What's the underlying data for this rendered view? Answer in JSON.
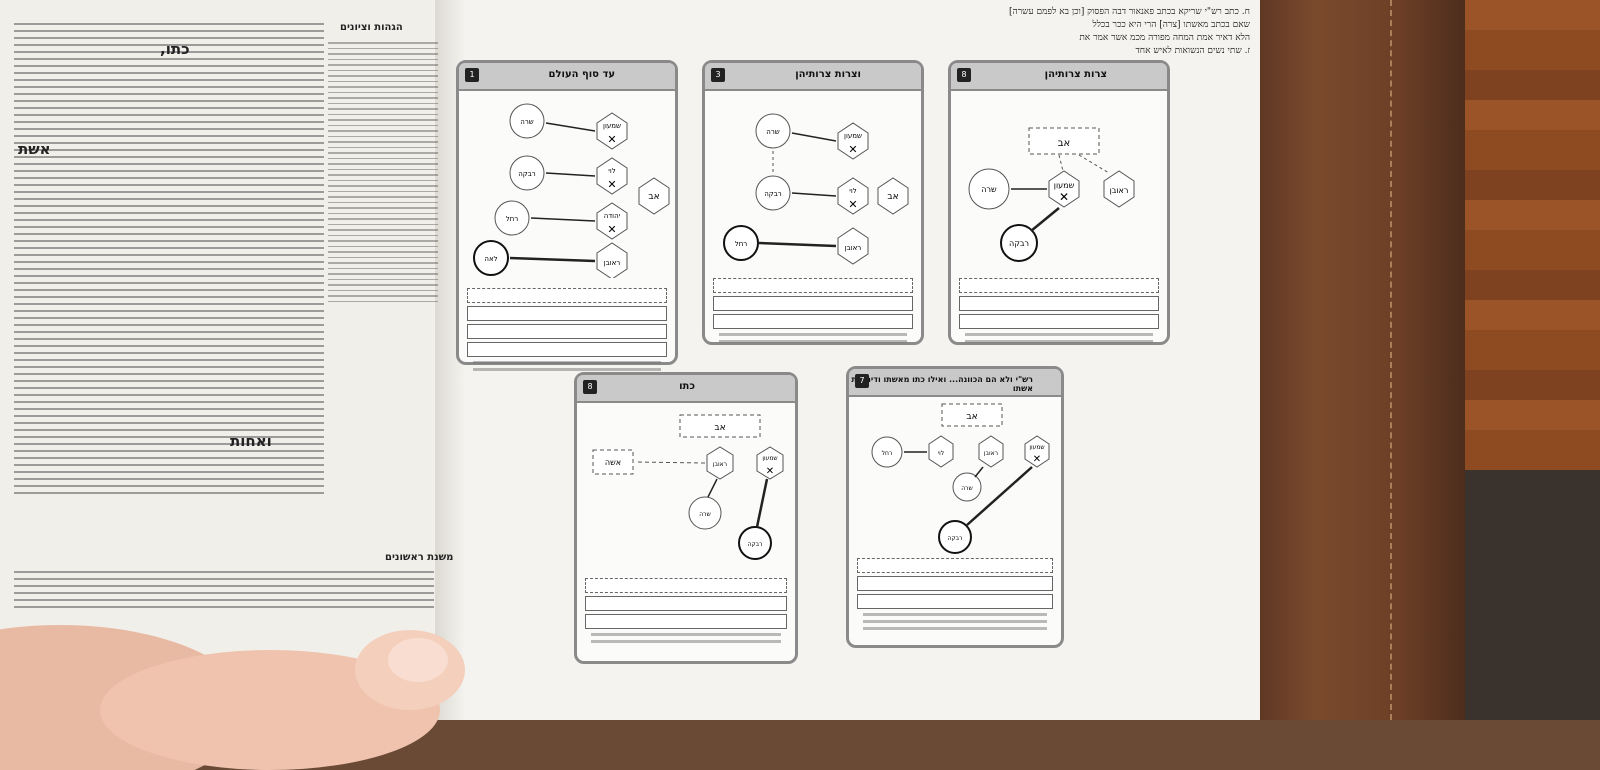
{
  "page": {
    "right_top_text": [
      "ח. כתב רש\"י שריקא בכתב פאנאור דבה הפסוק [וכן בא לפמם עשרה]",
      "שאם בכתב מאשתו [צרה] הרי היא ככר בכלל",
      "הלא דאיר אמת המחה מפורה מכמ אשר אמר את",
      "ז. שתי נשים הנשואות לאיש אחד"
    ],
    "left_sidebar_header": "הגהות וציונים",
    "left_footer_header": "משנת ראשונים",
    "left_body_emphasis": [
      "כתו,",
      "אשת",
      "ואחות"
    ]
  },
  "boxes": [
    {
      "title": "צרות צרותיהן",
      "number": "8"
    },
    {
      "title": "וצרות צרותיהן",
      "number": "3"
    },
    {
      "title": "עד סוף העולם",
      "number": "1"
    },
    {
      "title": "רש\"י ולא הם הכוונה... ואילו כתו מאשתו ודינו בת אשתו",
      "number": "7"
    },
    {
      "title": "כתו",
      "number": "8"
    }
  ],
  "diagram_labels": {
    "father": "אב",
    "reuven": "ראובן",
    "shimon": "שמעון",
    "levi": "לוי",
    "yehuda": "יהודה",
    "sara": "שרה",
    "rivka": "רבקה",
    "rachel": "רחל",
    "leah": "לאה",
    "isha": "אשה"
  },
  "colors": {
    "box_border": "#8a8a8a",
    "title_bg": "#c9c9c9",
    "page": "#f4f3ef",
    "cover": "#6c3f26"
  }
}
